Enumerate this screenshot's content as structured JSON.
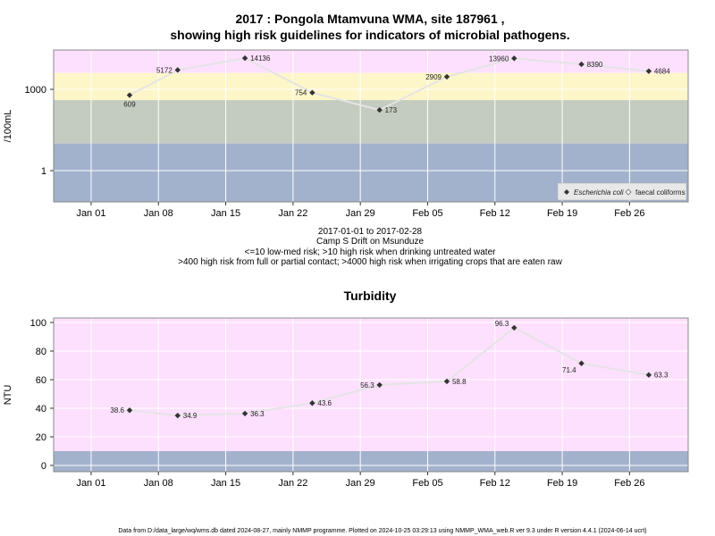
{
  "header": {
    "title_line1": "2017 : Pongola Mtamvuna WMA, site 187961 ,",
    "title_line2": "showing high risk guidelines for indicators of microbial pathogens."
  },
  "caption": {
    "line1": "2017-01-01 to 2017-02-28",
    "line2": "Camp S Drift on Msunduze",
    "line3": "<=10 low-med risk; >10 high risk when drinking untreated water",
    "line4": ">400 high risk from full or partial contact; >4000 high risk when irrigating crops that are eaten raw"
  },
  "footer": {
    "text": "Data from D:/data_large/wq/wms.db dated 2024-08-27, mainly NMMP programme. Plotted on 2024-10-25 03:29:13 using NMMP_WMA_web.R ver 9.3 under R version 4.4.1 (2024-06-14 ucrt)"
  },
  "colors": {
    "band_pink": "#fde0fd",
    "band_yellow": "#fdf6c8",
    "band_gray": "#c4ccc0",
    "band_blue": "#a2b2cc",
    "line": "#e4e4e4",
    "grid": "#ffffff",
    "marker": "#333333"
  },
  "chart_data": [
    {
      "type": "line",
      "title": "",
      "ylabel": "/100mL",
      "xlabel": "",
      "y_scale": "log",
      "x_ticks": [
        "Jan 01",
        "Jan 08",
        "Jan 15",
        "Jan 22",
        "Jan 29",
        "Feb 05",
        "Feb 12",
        "Feb 19",
        "Feb 26"
      ],
      "y_ticks": [
        "1",
        "1000"
      ],
      "x": [
        "2017-01-05",
        "2017-01-10",
        "2017-01-17",
        "2017-01-24",
        "2017-01-31",
        "2017-02-07",
        "2017-02-14",
        "2017-02-21",
        "2017-02-28"
      ],
      "series": [
        {
          "name": "Escherichia coli",
          "values": [
            609,
            5172,
            14136,
            754,
            173,
            2909,
            13960,
            8390,
            4684
          ]
        }
      ],
      "legend": [
        "Escherichia coli",
        "faecal coliforms"
      ],
      "legend_position": "bottom-right",
      "risk_bands": [
        {
          "from": 4000,
          "color": "#fde0fd"
        },
        {
          "from": 400,
          "to": 4000,
          "color": "#fdf6c8"
        },
        {
          "from": 10,
          "to": 400,
          "color": "#c4ccc0"
        },
        {
          "to": 10,
          "color": "#a2b2cc"
        }
      ],
      "grid": true
    },
    {
      "type": "line",
      "title": "Turbidity",
      "ylabel": "NTU",
      "xlabel": "",
      "x_ticks": [
        "Jan 01",
        "Jan 08",
        "Jan 15",
        "Jan 22",
        "Jan 29",
        "Feb 05",
        "Feb 12",
        "Feb 19",
        "Feb 26"
      ],
      "y_ticks": [
        "0",
        "20",
        "40",
        "60",
        "80",
        "100"
      ],
      "ylim": [
        0,
        100
      ],
      "x": [
        "2017-01-05",
        "2017-01-10",
        "2017-01-17",
        "2017-01-24",
        "2017-01-31",
        "2017-02-07",
        "2017-02-14",
        "2017-02-21",
        "2017-02-28"
      ],
      "series": [
        {
          "values": [
            38.6,
            34.9,
            36.3,
            43.6,
            56.3,
            58.8,
            96.3,
            71.4,
            63.3
          ]
        }
      ],
      "risk_bands": [
        {
          "from": 10,
          "color": "#fde0fd"
        },
        {
          "to": 10,
          "color": "#a2b2cc"
        }
      ],
      "grid": true
    }
  ]
}
